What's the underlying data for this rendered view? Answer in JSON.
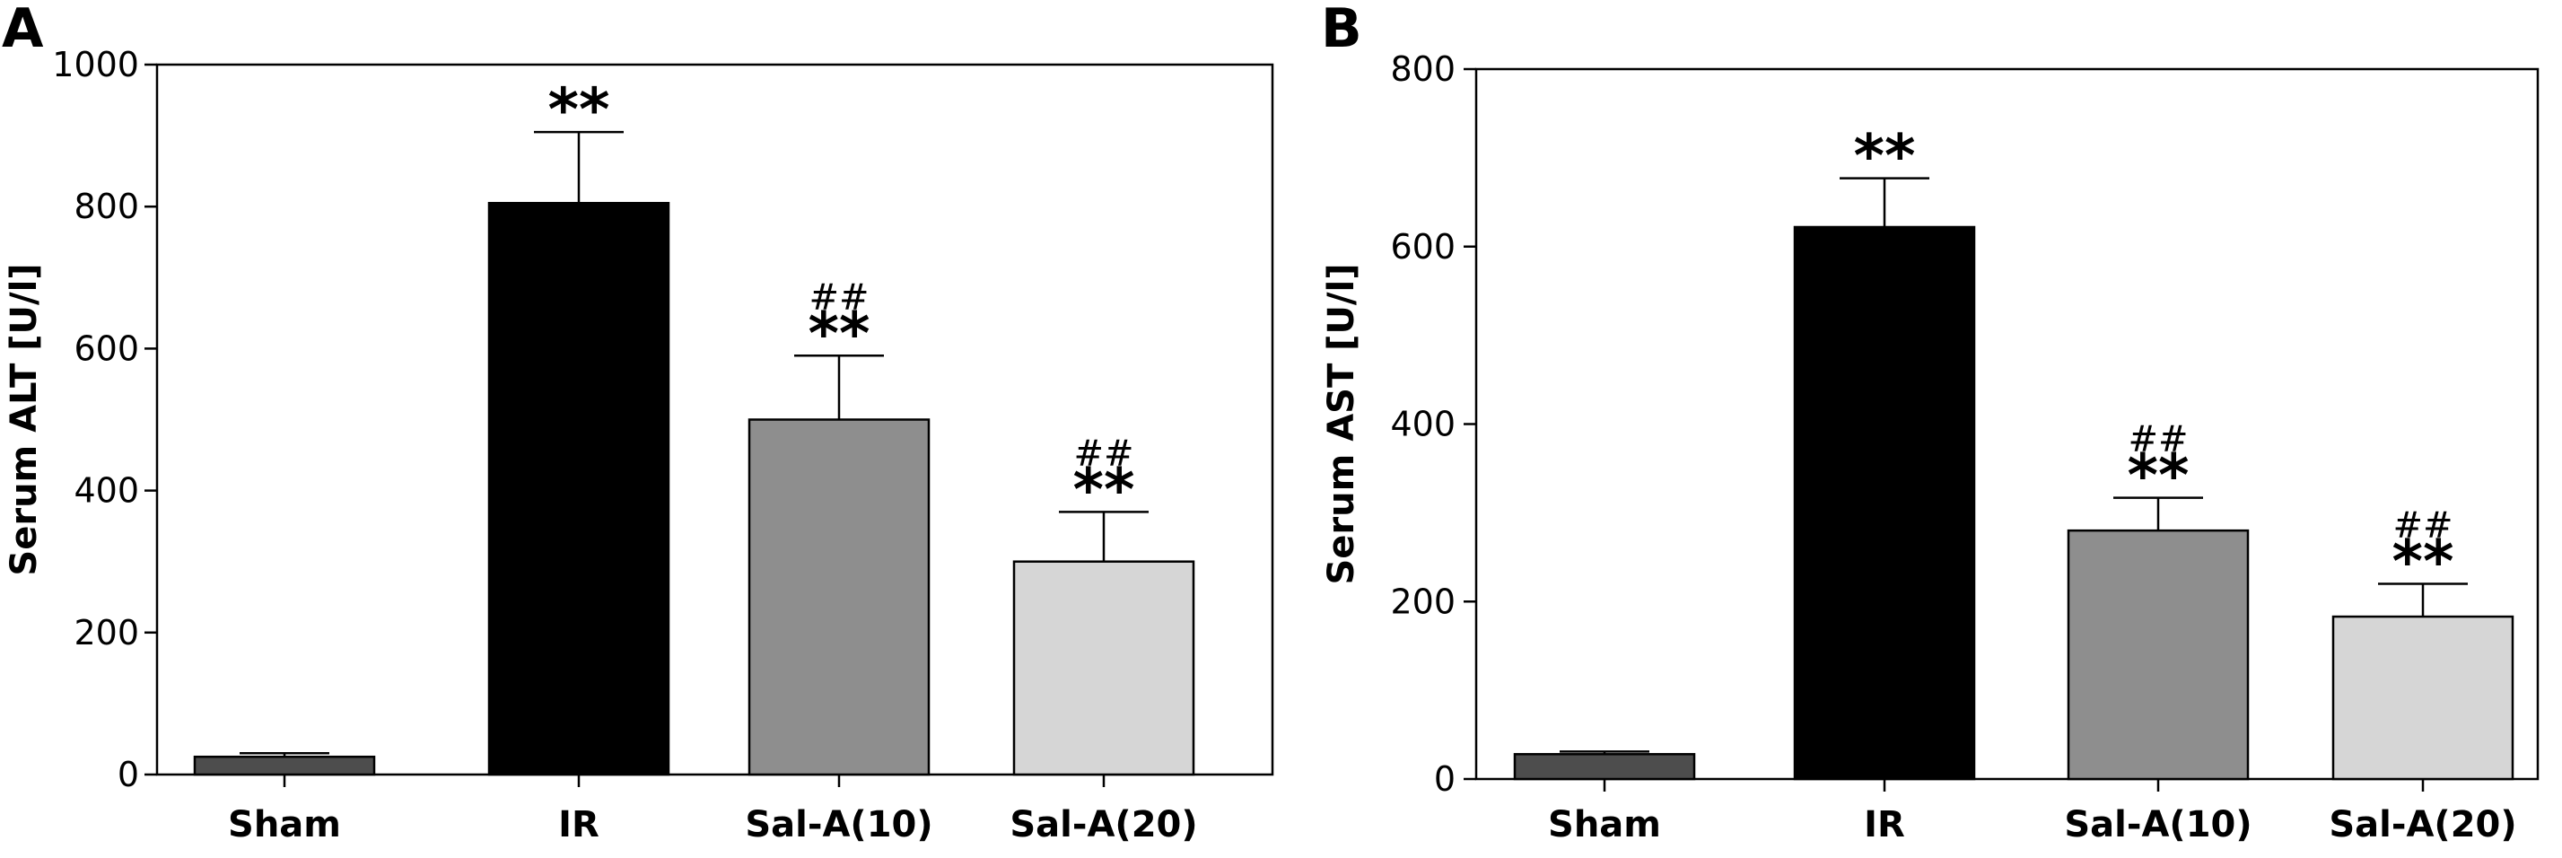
{
  "chart_data": [
    {
      "type": "bar",
      "panel_label": "A",
      "ylabel": "Serum ALT [U/l]",
      "ylim": [
        0,
        1000
      ],
      "yticks": [
        0,
        200,
        400,
        600,
        800,
        1000
      ],
      "categories": [
        "Sham",
        "IR",
        "Sal-A(10)",
        "Sal-A(20)"
      ],
      "values": [
        25,
        805,
        500,
        300
      ],
      "errors": [
        5,
        100,
        90,
        70
      ],
      "bar_colors": [
        "#4d4d4d",
        "#000000",
        "#8e8e8e",
        "#d6d6d6"
      ],
      "significance_star": [
        "",
        "**",
        "**",
        "**"
      ],
      "significance_hash": [
        "",
        "",
        "##",
        "##"
      ]
    },
    {
      "type": "bar",
      "panel_label": "B",
      "ylabel": "Serum AST [U/l]",
      "ylim": [
        0,
        800
      ],
      "yticks": [
        0,
        200,
        400,
        600,
        800
      ],
      "categories": [
        "Sham",
        "IR",
        "Sal-A(10)",
        "Sal-A(20)"
      ],
      "values": [
        28,
        622,
        280,
        183
      ],
      "errors": [
        3,
        55,
        37,
        37
      ],
      "bar_colors": [
        "#4d4d4d",
        "#000000",
        "#8e8e8e",
        "#d6d6d6"
      ],
      "significance_star": [
        "",
        "**",
        "**",
        "**"
      ],
      "significance_hash": [
        "",
        "",
        "##",
        "##"
      ]
    }
  ]
}
